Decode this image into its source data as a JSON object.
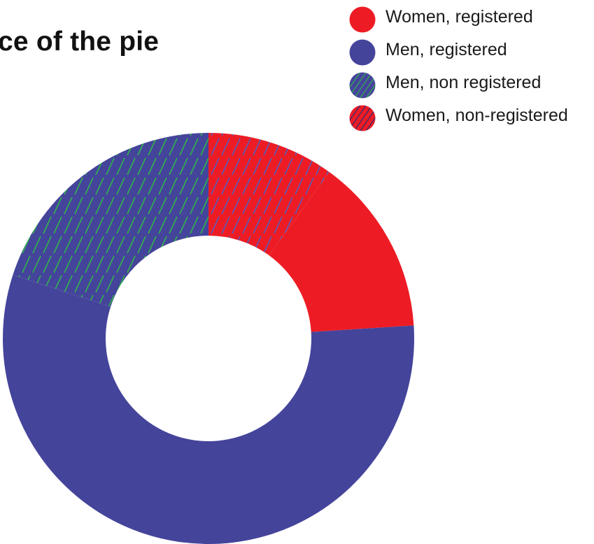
{
  "title": "ice of the pie",
  "colors": {
    "red": "#ed1c24",
    "blue": "#45449b",
    "hatch_green": "#2fb34a",
    "hatch_dark": "#2b2a72",
    "hatch_blue": "#5b5ab8"
  },
  "legend": {
    "items": [
      {
        "label": "Women, registered",
        "fill": "#ed1c24",
        "pattern": "none"
      },
      {
        "label": "Men, registered",
        "fill": "#45449b",
        "pattern": "none"
      },
      {
        "label": "Men, non registered",
        "fill": "#45449b",
        "pattern": "hatch-green"
      },
      {
        "label": "Women, non-registered",
        "fill": "#ed1c24",
        "pattern": "hatch-dark"
      }
    ]
  },
  "chart_data": {
    "type": "pie",
    "title": "ice of the pie",
    "donut": true,
    "categories": [
      "Women, non-registered",
      "Women, registered",
      "Men, registered",
      "Men, non registered"
    ],
    "values": [
      10,
      14,
      56,
      20
    ],
    "legend_position": "top-right"
  }
}
